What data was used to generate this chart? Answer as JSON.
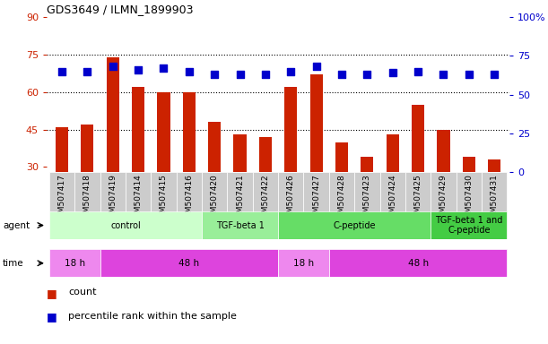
{
  "title": "GDS3649 / ILMN_1899903",
  "samples": [
    "GSM507417",
    "GSM507418",
    "GSM507419",
    "GSM507414",
    "GSM507415",
    "GSM507416",
    "GSM507420",
    "GSM507421",
    "GSM507422",
    "GSM507426",
    "GSM507427",
    "GSM507428",
    "GSM507423",
    "GSM507424",
    "GSM507425",
    "GSM507429",
    "GSM507430",
    "GSM507431"
  ],
  "count_values": [
    46,
    47,
    74,
    62,
    60,
    60,
    48,
    43,
    42,
    62,
    67,
    40,
    34,
    43,
    55,
    45,
    34,
    33
  ],
  "percentile_values": [
    65,
    65,
    68,
    66,
    67,
    65,
    63,
    63,
    63,
    65,
    68,
    63,
    63,
    64,
    65,
    63,
    63,
    63
  ],
  "count_color": "#cc2200",
  "percentile_color": "#0000cc",
  "ylim_left": [
    28,
    90
  ],
  "ylim_right": [
    0,
    100
  ],
  "yticks_left": [
    30,
    45,
    60,
    75,
    90
  ],
  "ytick_labels_left": [
    "30",
    "45",
    "60",
    "75",
    "90"
  ],
  "yticks_right": [
    0,
    25,
    50,
    75,
    100
  ],
  "ytick_labels_right": [
    "0",
    "25",
    "50",
    "75",
    "100%"
  ],
  "hlines": [
    45,
    60,
    75
  ],
  "agent_groups": [
    {
      "label": "control",
      "start": 0,
      "end": 6,
      "color": "#ccffcc"
    },
    {
      "label": "TGF-beta 1",
      "start": 6,
      "end": 9,
      "color": "#99ee99"
    },
    {
      "label": "C-peptide",
      "start": 9,
      "end": 15,
      "color": "#66dd66"
    },
    {
      "label": "TGF-beta 1 and\nC-peptide",
      "start": 15,
      "end": 18,
      "color": "#44cc44"
    }
  ],
  "time_groups": [
    {
      "label": "18 h",
      "start": 0,
      "end": 2,
      "color": "#ee88ee"
    },
    {
      "label": "48 h",
      "start": 2,
      "end": 9,
      "color": "#dd44dd"
    },
    {
      "label": "18 h",
      "start": 9,
      "end": 11,
      "color": "#ee88ee"
    },
    {
      "label": "48 h",
      "start": 11,
      "end": 18,
      "color": "#dd44dd"
    }
  ],
  "bar_width": 0.5,
  "dot_size": 40,
  "tick_bg_color": "#cccccc",
  "legend_count_label": "count",
  "legend_percentile_label": "percentile rank within the sample",
  "agent_label": "agent",
  "time_label": "time"
}
